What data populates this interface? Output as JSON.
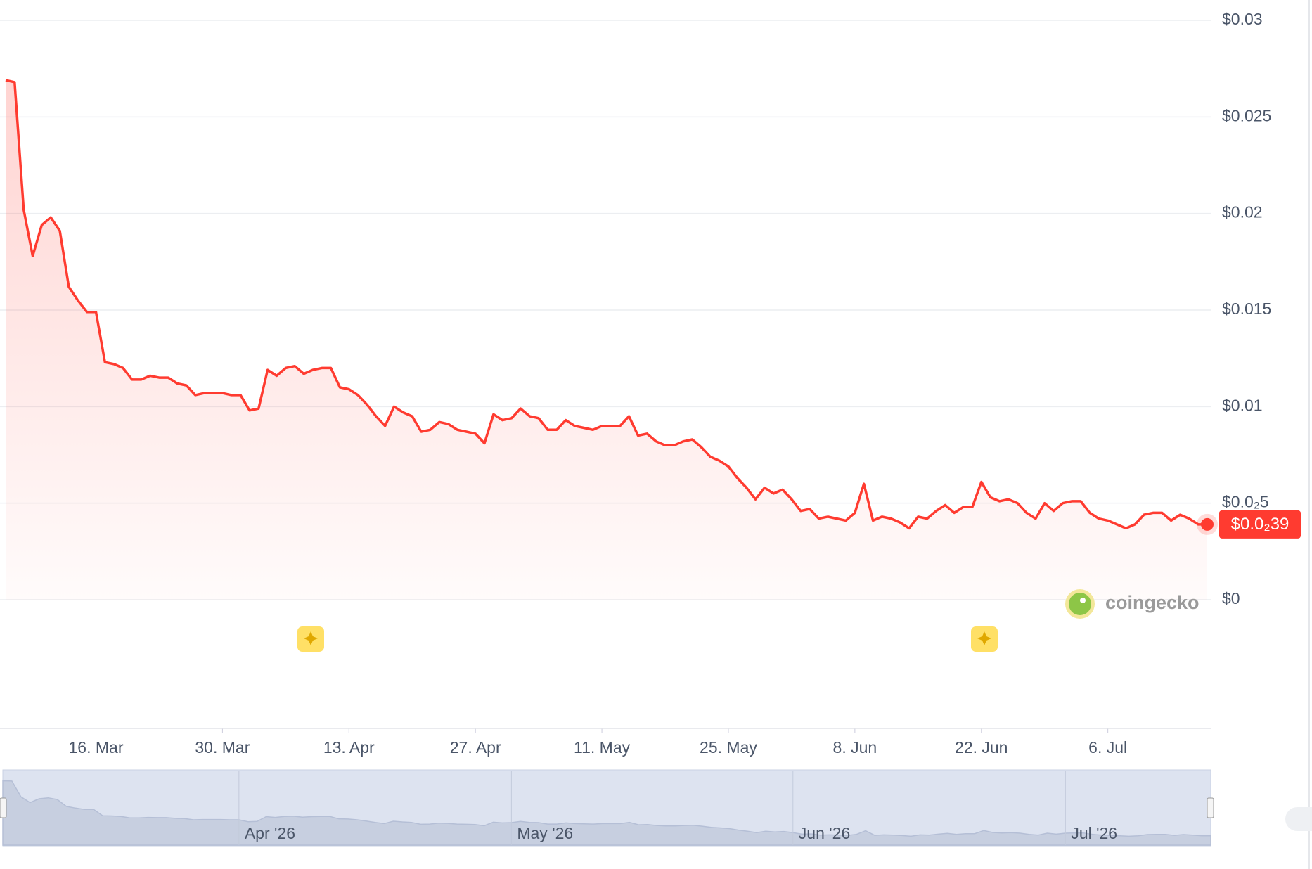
{
  "chart_data": {
    "type": "line",
    "x": [
      "2026-03-06",
      "2026-03-07",
      "2026-03-08",
      "2026-03-09",
      "2026-03-10",
      "2026-03-11",
      "2026-03-12",
      "2026-03-13",
      "2026-03-14",
      "2026-03-15",
      "2026-03-16",
      "2026-03-17",
      "2026-03-18",
      "2026-03-19",
      "2026-03-20",
      "2026-03-21",
      "2026-03-22",
      "2026-03-23",
      "2026-03-24",
      "2026-03-25",
      "2026-03-26",
      "2026-03-27",
      "2026-03-28",
      "2026-03-29",
      "2026-03-30",
      "2026-03-31",
      "2026-04-01",
      "2026-04-02",
      "2026-04-03",
      "2026-04-04",
      "2026-04-05",
      "2026-04-06",
      "2026-04-07",
      "2026-04-08",
      "2026-04-09",
      "2026-04-10",
      "2026-04-11",
      "2026-04-12",
      "2026-04-13",
      "2026-04-14",
      "2026-04-15",
      "2026-04-16",
      "2026-04-17",
      "2026-04-18",
      "2026-04-19",
      "2026-04-20",
      "2026-04-21",
      "2026-04-22",
      "2026-04-23",
      "2026-04-24",
      "2026-04-25",
      "2026-04-26",
      "2026-04-27",
      "2026-04-28",
      "2026-04-29",
      "2026-04-30",
      "2026-05-01",
      "2026-05-02",
      "2026-05-03",
      "2026-05-04",
      "2026-05-05",
      "2026-05-06",
      "2026-05-07",
      "2026-05-08",
      "2026-05-09",
      "2026-05-10",
      "2026-05-11",
      "2026-05-12",
      "2026-05-13",
      "2026-05-14",
      "2026-05-15",
      "2026-05-16",
      "2026-05-17",
      "2026-05-18",
      "2026-05-19",
      "2026-05-20",
      "2026-05-21",
      "2026-05-22",
      "2026-05-23",
      "2026-05-24",
      "2026-05-25",
      "2026-05-26",
      "2026-05-27",
      "2026-05-28",
      "2026-05-29",
      "2026-05-30",
      "2026-05-31",
      "2026-06-01",
      "2026-06-02",
      "2026-06-03",
      "2026-06-04",
      "2026-06-05",
      "2026-06-06",
      "2026-06-07",
      "2026-06-08",
      "2026-06-09",
      "2026-06-10",
      "2026-06-11",
      "2026-06-12",
      "2026-06-13",
      "2026-06-14",
      "2026-06-15",
      "2026-06-16",
      "2026-06-17",
      "2026-06-18",
      "2026-06-19",
      "2026-06-20",
      "2026-06-21",
      "2026-06-22",
      "2026-06-23",
      "2026-06-24",
      "2026-06-25",
      "2026-06-26",
      "2026-06-27",
      "2026-06-28",
      "2026-06-29",
      "2026-06-30",
      "2026-07-01",
      "2026-07-02",
      "2026-07-03",
      "2026-07-04",
      "2026-07-05",
      "2026-07-06",
      "2026-07-07",
      "2026-07-08",
      "2026-07-09",
      "2026-07-10",
      "2026-07-11",
      "2026-07-12",
      "2026-07-13",
      "2026-07-14",
      "2026-07-15",
      "2026-07-16",
      "2026-07-17"
    ],
    "series": [
      {
        "color": "#ff3b30",
        "values": [
          0.0269,
          0.0268,
          0.0202,
          0.0178,
          0.0194,
          0.0198,
          0.0191,
          0.0162,
          0.0155,
          0.0149,
          0.0149,
          0.0123,
          0.0122,
          0.012,
          0.0114,
          0.0114,
          0.0116,
          0.0115,
          0.0115,
          0.0112,
          0.0111,
          0.0106,
          0.0107,
          0.0107,
          0.0107,
          0.0106,
          0.0106,
          0.0098,
          0.0099,
          0.0119,
          0.0116,
          0.012,
          0.0121,
          0.0117,
          0.0119,
          0.012,
          0.012,
          0.011,
          0.0109,
          0.0106,
          0.0101,
          0.0095,
          0.009,
          0.01,
          0.0097,
          0.0095,
          0.0087,
          0.0088,
          0.0092,
          0.0091,
          0.0088,
          0.0087,
          0.0086,
          0.0081,
          0.0096,
          0.0093,
          0.0094,
          0.0099,
          0.0095,
          0.0094,
          0.0088,
          0.0088,
          0.0093,
          0.009,
          0.0089,
          0.0088,
          0.009,
          0.009,
          0.009,
          0.0095,
          0.0085,
          0.0086,
          0.0082,
          0.008,
          0.008,
          0.0082,
          0.0083,
          0.0079,
          0.0074,
          0.0072,
          0.0069,
          0.0063,
          0.0058,
          0.0052,
          0.0058,
          0.0055,
          0.0057,
          0.0052,
          0.0046,
          0.0047,
          0.0042,
          0.0043,
          0.0042,
          0.0041,
          0.0045,
          0.006,
          0.0041,
          0.0043,
          0.0042,
          0.004,
          0.0037,
          0.0043,
          0.0042,
          0.0046,
          0.0049,
          0.0045,
          0.0048,
          0.0048,
          0.0061,
          0.0053,
          0.0051,
          0.0052,
          0.005,
          0.0045,
          0.0042,
          0.005,
          0.0046,
          0.005,
          0.0051,
          0.0051,
          0.0045,
          0.0042,
          0.0041,
          0.0039,
          0.0037,
          0.0039,
          0.0044,
          0.0045,
          0.0045,
          0.0041,
          0.0044,
          0.0042,
          0.0039,
          0.0039
        ]
      }
    ],
    "last_value_label": "$0.0₂39",
    "xlim": [
      "2026-03-06",
      "2026-07-17"
    ],
    "xticks": [
      {
        "value": "2026-03-16",
        "label": "16. Mar"
      },
      {
        "value": "2026-03-30",
        "label": "30. Mar"
      },
      {
        "value": "2026-04-13",
        "label": "13. Apr"
      },
      {
        "value": "2026-04-27",
        "label": "27. Apr"
      },
      {
        "value": "2026-05-11",
        "label": "11. May"
      },
      {
        "value": "2026-05-25",
        "label": "25. May"
      },
      {
        "value": "2026-06-08",
        "label": "8. Jun"
      },
      {
        "value": "2026-06-22",
        "label": "22. Jun"
      },
      {
        "value": "2026-07-06",
        "label": "6. Jul"
      }
    ],
    "ylim": [
      0,
      0.03
    ],
    "yticks": [
      {
        "value": 0,
        "label": "$0"
      },
      {
        "value": 0.005,
        "label": "$0.0₂5"
      },
      {
        "value": 0.01,
        "label": "$0.01"
      },
      {
        "value": 0.015,
        "label": "$0.015"
      },
      {
        "value": 0.02,
        "label": "$0.02"
      },
      {
        "value": 0.025,
        "label": "$0.025"
      },
      {
        "value": 0.03,
        "label": "$0.03"
      }
    ],
    "grid": true,
    "navigator_ticks": [
      {
        "value": "2026-04-01",
        "label": "Apr '26"
      },
      {
        "value": "2026-05-01",
        "label": "May '26"
      },
      {
        "value": "2026-06-01",
        "label": "Jun '26"
      },
      {
        "value": "2026-07-01",
        "label": "Jul '26"
      }
    ],
    "watermark": "coingecko"
  }
}
